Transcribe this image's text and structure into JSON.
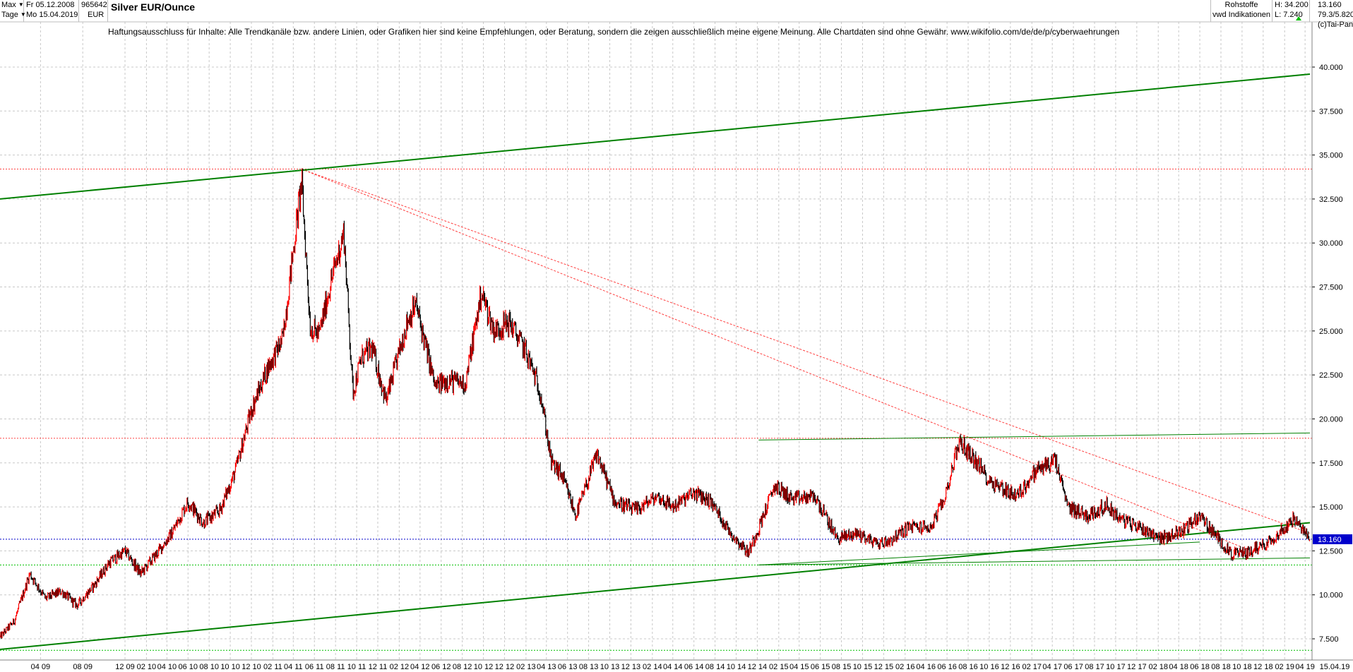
{
  "header": {
    "range_select": "Max",
    "interval_select": "Tage",
    "date_from": "Fr 05.12.2008",
    "date_to": "Mo 15.04.2019",
    "wkn": "965642",
    "currency": "EUR",
    "title": "Silver EUR/Ounce",
    "category": "Rohstoffe",
    "source": "vwd Indikationen",
    "high": "H: 34.200",
    "low": "L: 7.240",
    "last": "13.160",
    "stat2": "79.3/5.820",
    "copyright": "(c)Tai-Pan"
  },
  "disclaimer": "Haftungsausschluss für Inhalte: Alle Trendkanäle bzw. andere Linien, oder Grafiken hier sind keine Empfehlungen, oder Beratung, sondern die zeigen ausschließlich meine eigene Meinung. Alle Chartdaten sind ohne Gewähr.  www.wikifolio.com/de/de/p/cyberwaehrungen",
  "colors": {
    "up": "#ff0000",
    "down": "#000000",
    "trend": "#008000",
    "trend_light": "#00c000",
    "resistance": "#ff4040",
    "current": "#0000cc",
    "grid": "#c8c8c8"
  },
  "chart_data": {
    "type": "line",
    "title": "Silver EUR/Ounce",
    "currency": "EUR",
    "y_scale": "linear",
    "ylim": [
      6.5,
      41.5
    ],
    "y_ticks": [
      7.5,
      10.0,
      12.5,
      15.0,
      17.5,
      20.0,
      22.5,
      25.0,
      27.5,
      30.0,
      32.5,
      35.0,
      37.5,
      40.0
    ],
    "y_tick_labels": [
      "7.500",
      "10.000",
      "12.500",
      "15.000",
      "17.500",
      "20.000",
      "22.500",
      "25.000",
      "27.500",
      "30.000",
      "32.500",
      "35.000",
      "37.500",
      "40.000"
    ],
    "x_range": [
      "2008-12-05",
      "2019-04-15"
    ],
    "x_ticks": [
      {
        "date": "2009-04-01",
        "label": "04 09"
      },
      {
        "date": "2009-08-01",
        "label": "08 09"
      },
      {
        "date": "2009-12-01",
        "label": "12 09"
      },
      {
        "date": "2010-02-01",
        "label": "02 10"
      },
      {
        "date": "2010-04-01",
        "label": "04 10"
      },
      {
        "date": "2010-06-01",
        "label": "06 10"
      },
      {
        "date": "2010-08-01",
        "label": "08 10"
      },
      {
        "date": "2010-10-01",
        "label": "10 10"
      },
      {
        "date": "2010-12-01",
        "label": "12 10"
      },
      {
        "date": "2011-02-01",
        "label": "02 11"
      },
      {
        "date": "2011-04-01",
        "label": "04 11"
      },
      {
        "date": "2011-06-01",
        "label": "06 11"
      },
      {
        "date": "2011-08-01",
        "label": "08 11"
      },
      {
        "date": "2011-10-01",
        "label": "10 11"
      },
      {
        "date": "2011-12-01",
        "label": "12 11"
      },
      {
        "date": "2012-02-01",
        "label": "02 12"
      },
      {
        "date": "2012-04-01",
        "label": "04 12"
      },
      {
        "date": "2012-06-01",
        "label": "06 12"
      },
      {
        "date": "2012-08-01",
        "label": "08 12"
      },
      {
        "date": "2012-10-01",
        "label": "10 12"
      },
      {
        "date": "2012-12-01",
        "label": "12 12"
      },
      {
        "date": "2013-02-01",
        "label": "02 13"
      },
      {
        "date": "2013-04-01",
        "label": "04 13"
      },
      {
        "date": "2013-06-01",
        "label": "06 13"
      },
      {
        "date": "2013-08-01",
        "label": "08 13"
      },
      {
        "date": "2013-10-01",
        "label": "10 13"
      },
      {
        "date": "2013-12-01",
        "label": "12 13"
      },
      {
        "date": "2014-02-01",
        "label": "02 14"
      },
      {
        "date": "2014-04-01",
        "label": "04 14"
      },
      {
        "date": "2014-06-01",
        "label": "06 14"
      },
      {
        "date": "2014-08-01",
        "label": "08 14"
      },
      {
        "date": "2014-10-01",
        "label": "10 14"
      },
      {
        "date": "2014-12-01",
        "label": "12 14"
      },
      {
        "date": "2015-02-01",
        "label": "02 15"
      },
      {
        "date": "2015-04-01",
        "label": "04 15"
      },
      {
        "date": "2015-06-01",
        "label": "06 15"
      },
      {
        "date": "2015-08-01",
        "label": "08 15"
      },
      {
        "date": "2015-10-01",
        "label": "10 15"
      },
      {
        "date": "2015-12-01",
        "label": "12 15"
      },
      {
        "date": "2016-02-01",
        "label": "02 16"
      },
      {
        "date": "2016-04-01",
        "label": "04 16"
      },
      {
        "date": "2016-06-01",
        "label": "06 16"
      },
      {
        "date": "2016-08-01",
        "label": "08 16"
      },
      {
        "date": "2016-10-01",
        "label": "10 16"
      },
      {
        "date": "2016-12-01",
        "label": "12 16"
      },
      {
        "date": "2017-02-01",
        "label": "02 17"
      },
      {
        "date": "2017-04-01",
        "label": "04 17"
      },
      {
        "date": "2017-06-01",
        "label": "06 17"
      },
      {
        "date": "2017-08-01",
        "label": "08 17"
      },
      {
        "date": "2017-10-01",
        "label": "10 17"
      },
      {
        "date": "2017-12-01",
        "label": "12 17"
      },
      {
        "date": "2018-02-01",
        "label": "02 18"
      },
      {
        "date": "2018-04-01",
        "label": "04 18"
      },
      {
        "date": "2018-06-01",
        "label": "06 18"
      },
      {
        "date": "2018-08-01",
        "label": "08 18"
      },
      {
        "date": "2018-10-01",
        "label": "10 18"
      },
      {
        "date": "2018-12-01",
        "label": "12 18"
      },
      {
        "date": "2019-02-01",
        "label": "02 19"
      },
      {
        "date": "2019-04-01",
        "label": "04 19"
      }
    ],
    "end_label": "15.04.19",
    "series": [
      {
        "x": [
          "2008-12-05",
          "2009-01-15",
          "2009-03-01",
          "2009-04-15",
          "2009-06-01",
          "2009-07-15",
          "2009-09-01",
          "2009-10-15",
          "2009-12-01",
          "2010-01-15",
          "2010-03-01",
          "2010-04-15",
          "2010-06-01",
          "2010-07-15",
          "2010-09-01",
          "2010-10-15",
          "2010-12-01",
          "2011-01-15",
          "2011-03-01",
          "2011-04-25",
          "2011-05-20",
          "2011-06-15",
          "2011-07-15",
          "2011-08-25",
          "2011-09-20",
          "2011-10-15",
          "2011-11-15",
          "2011-12-25",
          "2012-02-25",
          "2012-03-20",
          "2012-05-15",
          "2012-06-15",
          "2012-08-10",
          "2012-09-25",
          "2012-11-01",
          "2012-12-15",
          "2013-02-01",
          "2013-03-15",
          "2013-04-15",
          "2013-05-15",
          "2013-06-25",
          "2013-08-25",
          "2013-10-15",
          "2013-12-15",
          "2014-02-15",
          "2014-04-01",
          "2014-06-01",
          "2014-07-20",
          "2014-09-15",
          "2014-11-05",
          "2014-12-05",
          "2015-01-20",
          "2015-03-15",
          "2015-05-15",
          "2015-07-20",
          "2015-09-15",
          "2015-11-15",
          "2015-12-20",
          "2016-02-15",
          "2016-04-15",
          "2016-05-25",
          "2016-07-05",
          "2016-08-15",
          "2016-10-01",
          "2016-11-15",
          "2016-12-20",
          "2017-02-15",
          "2017-04-10",
          "2017-05-15",
          "2017-07-15",
          "2017-09-05",
          "2017-10-15",
          "2017-12-15",
          "2018-02-15",
          "2018-04-15",
          "2018-06-01",
          "2018-07-15",
          "2018-09-01",
          "2018-10-15",
          "2018-12-15",
          "2019-02-01",
          "2019-02-25",
          "2019-04-15"
        ],
        "close": [
          7.6,
          8.5,
          11.2,
          9.8,
          10.2,
          9.4,
          10.5,
          11.8,
          12.5,
          11.2,
          12.3,
          13.5,
          15.3,
          14.1,
          14.8,
          17.0,
          20.5,
          22.8,
          24.5,
          33.5,
          25.2,
          24.8,
          27.5,
          30.6,
          21.5,
          23.5,
          24.0,
          21.0,
          25.6,
          26.5,
          21.8,
          22.2,
          22.0,
          27.2,
          25.0,
          25.5,
          23.8,
          21.5,
          17.5,
          16.8,
          14.5,
          18.0,
          15.3,
          14.8,
          15.6,
          15.0,
          15.8,
          15.3,
          13.5,
          12.4,
          13.8,
          16.2,
          15.4,
          15.6,
          13.2,
          13.5,
          12.9,
          13.1,
          13.9,
          13.8,
          15.5,
          18.7,
          17.8,
          16.5,
          16.0,
          15.6,
          17.1,
          17.6,
          15.0,
          14.5,
          15.1,
          14.3,
          13.8,
          13.2,
          13.7,
          14.5,
          13.4,
          12.3,
          12.4,
          13.0,
          13.8,
          14.3,
          13.16
        ]
      }
    ],
    "trendlines": [
      {
        "x": [
          "2008-12-05",
          "2019-04-15"
        ],
        "y": [
          32.5,
          39.6
        ]
      },
      {
        "x": [
          "2008-12-05",
          "2019-04-15"
        ],
        "y": [
          6.9,
          14.1
        ]
      },
      {
        "x": [
          "2014-12-05",
          "2019-04-15"
        ],
        "y": [
          18.8,
          19.2
        ]
      },
      {
        "x": [
          "2014-12-05",
          "2019-04-15"
        ],
        "y": [
          11.7,
          12.1
        ]
      },
      {
        "x": [
          "2014-12-05",
          "2018-06-01"
        ],
        "y": [
          11.7,
          13.0
        ]
      }
    ],
    "resistance_lines": [
      {
        "x": [
          "2011-04-25",
          "2018-10-15"
        ],
        "y": [
          34.2,
          12.6
        ]
      },
      {
        "x": [
          "2011-04-25",
          "2019-04-15"
        ],
        "y": [
          34.2,
          13.5
        ]
      }
    ],
    "horizontal_levels": [
      {
        "y": 34.2,
        "style": "dotted",
        "color": "#ff4040"
      },
      {
        "y": 18.9,
        "style": "dotted",
        "color": "#ff4040"
      },
      {
        "y": 13.16,
        "style": "dotted",
        "color": "#0000cc"
      },
      {
        "y": 11.7,
        "style": "dotted",
        "color": "#00c000"
      },
      {
        "y": 6.85,
        "style": "dotted",
        "color": "#00c000"
      }
    ],
    "last_price": 13.16,
    "last_price_label": "13.160",
    "grid": true
  }
}
